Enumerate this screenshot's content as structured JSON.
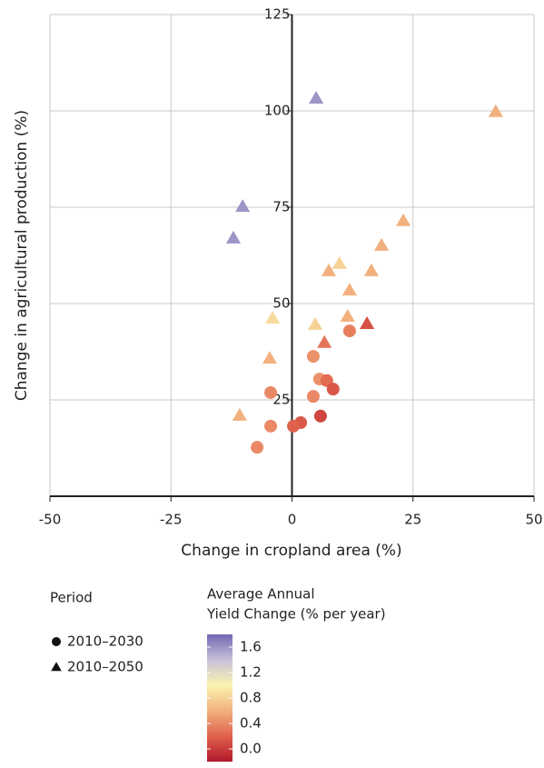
{
  "chart_data": {
    "type": "scatter",
    "xlabel": "Change in cropland area (%)",
    "ylabel": "Change in agricultural production (%)",
    "xlim": [
      -50,
      50
    ],
    "xticks": [
      -50,
      -25,
      0,
      25,
      50
    ],
    "ylim": [
      0,
      125
    ],
    "yticks": [
      25,
      50,
      75,
      100,
      125
    ],
    "grid": true,
    "legend_title": "Period",
    "colorbar_title": [
      "Average Annual",
      "Yield Change (% per year)"
    ],
    "clim": [
      -0.2,
      1.8
    ],
    "cticks": [
      {
        "value": 0,
        "label": "0.0"
      },
      0.4,
      0.8,
      1.2,
      1.6
    ],
    "colormap": [
      "#b2182b",
      "#e0614c",
      "#f2b07e",
      "#faf3b0",
      "#c7c1d9",
      "#7467b3"
    ],
    "series": [
      {
        "name": "2010–2030",
        "marker": "circle",
        "x": [
          11.9,
          4.4,
          5.7,
          7.2,
          8.5,
          -4.4,
          4.4,
          5.9,
          1.8,
          0.3,
          -4.4,
          -7.2
        ],
        "values": [
          42.9,
          36.3,
          30.4,
          30.0,
          27.8,
          26.9,
          25.9,
          20.8,
          19.1,
          18.2,
          18.2,
          12.7
        ],
        "color_values": [
          0.35,
          0.45,
          0.45,
          0.25,
          0.15,
          0.4,
          0.4,
          0.05,
          0.15,
          0.2,
          0.4,
          0.4
        ]
      },
      {
        "name": "2010–2050",
        "marker": "triangle",
        "x": [
          5.0,
          42.1,
          -10.2,
          -12.1,
          23.0,
          18.5,
          7.6,
          9.8,
          16.4,
          11.9,
          -4.0,
          4.8,
          11.5,
          15.5,
          6.7,
          -4.6,
          -10.8
        ],
        "values": [
          103.3,
          99.8,
          75.2,
          67.0,
          71.5,
          65.1,
          58.5,
          60.4,
          58.5,
          53.5,
          46.2,
          44.6,
          46.7,
          44.8,
          39.9,
          35.8,
          21.0
        ],
        "color_values": [
          1.6,
          0.6,
          1.6,
          1.6,
          0.6,
          0.6,
          0.6,
          0.8,
          0.6,
          0.6,
          0.85,
          0.8,
          0.6,
          0.1,
          0.3,
          0.6,
          0.6
        ]
      }
    ]
  }
}
